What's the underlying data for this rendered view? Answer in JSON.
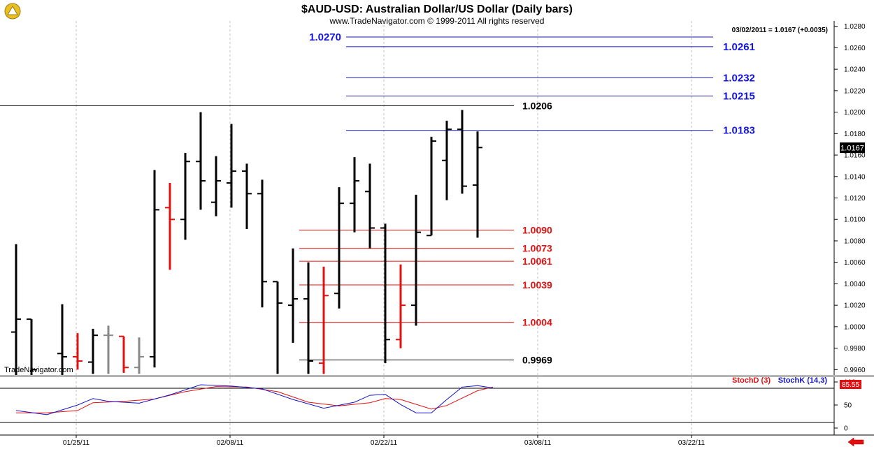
{
  "header": {
    "title": "$AUD-USD:  Australian Dollar/US Dollar  (Daily bars)",
    "subtitle": "www.TradeNavigator.com © 1999-2011 All rights reserved",
    "info": "03/02/2011 = 1.0167 (+0.0035)",
    "watermark": "TradeNavigator.com"
  },
  "colors": {
    "up_bar": "#000000",
    "down_bar": "#e41010",
    "neutral_bar": "#888888",
    "blue_level": "#1a1aa0",
    "blue_label": "#1515e0",
    "red_level": "#e41010",
    "black_level": "#000000",
    "grid": "#c0c0c0",
    "stoch_d": "#e41010",
    "stoch_k": "#1515c8"
  },
  "chart_data": {
    "type": "ohlc",
    "price_axis": {
      "min": 0.9955,
      "max": 1.0285,
      "ticks": [
        "1.0280",
        "1.0260",
        "1.0240",
        "1.0220",
        "1.0200",
        "1.0180",
        "1.0160",
        "1.0140",
        "1.0120",
        "1.0100",
        "1.0080",
        "1.0060",
        "1.0040",
        "1.0020",
        "1.0000",
        "0.9980",
        "0.9960"
      ],
      "last_price": "1.0167"
    },
    "date_axis": {
      "labels": [
        {
          "label": "01/25/11",
          "day": 0
        },
        {
          "label": "02/08/11",
          "day": 10
        },
        {
          "label": "02/22/11",
          "day": 20
        },
        {
          "label": "03/08/11",
          "day": 30
        },
        {
          "label": "03/22/11",
          "day": 40
        }
      ],
      "last_day": 47
    },
    "bars": [
      {
        "day": -4,
        "o": 0.9995,
        "h": 1.0077,
        "l": 0.9955,
        "c": 1.0007,
        "color": "up"
      },
      {
        "day": -3,
        "o": 1.0007,
        "h": 1.0007,
        "l": 0.9955,
        "c": 0.996,
        "color": "up"
      },
      {
        "day": -1,
        "o": 0.9975,
        "h": 1.0021,
        "l": 0.9955,
        "c": 0.9972,
        "color": "up"
      },
      {
        "day": 0,
        "o": 0.9972,
        "h": 0.9994,
        "l": 0.996,
        "c": 0.9968,
        "color": "down"
      },
      {
        "day": 1,
        "o": 0.9967,
        "h": 0.9998,
        "l": 0.9956,
        "c": 0.9992,
        "color": "up"
      },
      {
        "day": 2,
        "o": 0.9992,
        "h": 1.0001,
        "l": 0.9956,
        "c": 0.9992,
        "color": "neutral"
      },
      {
        "day": 3,
        "o": 0.9991,
        "h": 0.9991,
        "l": 0.9957,
        "c": 0.9962,
        "color": "down"
      },
      {
        "day": 4,
        "o": 0.9962,
        "h": 0.999,
        "l": 0.9956,
        "c": 0.9972,
        "color": "neutral"
      },
      {
        "day": 5,
        "o": 0.9972,
        "h": 1.0146,
        "l": 0.9962,
        "c": 1.0109,
        "color": "up"
      },
      {
        "day": 6,
        "o": 1.0111,
        "h": 1.0134,
        "l": 1.0053,
        "c": 1.01,
        "color": "down"
      },
      {
        "day": 7,
        "o": 1.01,
        "h": 1.0162,
        "l": 1.0081,
        "c": 1.0154,
        "color": "up"
      },
      {
        "day": 8,
        "o": 1.0154,
        "h": 1.02,
        "l": 1.0109,
        "c": 1.0136,
        "color": "up"
      },
      {
        "day": 9,
        "o": 1.0116,
        "h": 1.0159,
        "l": 1.0103,
        "c": 1.0136,
        "color": "up"
      },
      {
        "day": 10,
        "o": 1.0134,
        "h": 1.0189,
        "l": 1.0111,
        "c": 1.0145,
        "color": "up"
      },
      {
        "day": 11,
        "o": 1.0145,
        "h": 1.0152,
        "l": 1.0091,
        "c": 1.0124,
        "color": "up"
      },
      {
        "day": 12,
        "o": 1.0124,
        "h": 1.0137,
        "l": 1.0018,
        "c": 1.0042,
        "color": "up"
      },
      {
        "day": 13,
        "o": 1.0042,
        "h": 1.0042,
        "l": 0.9956,
        "c": 1.0022,
        "color": "up"
      },
      {
        "day": 14,
        "o": 1.002,
        "h": 1.0073,
        "l": 0.9985,
        "c": 1.0026,
        "color": "up"
      },
      {
        "day": 15,
        "o": 1.0026,
        "h": 1.006,
        "l": 0.9956,
        "c": 0.9968,
        "color": "up"
      },
      {
        "day": 16,
        "o": 0.9966,
        "h": 1.0056,
        "l": 0.9956,
        "c": 1.0029,
        "color": "down"
      },
      {
        "day": 17,
        "o": 1.0031,
        "h": 1.013,
        "l": 1.0017,
        "c": 1.0115,
        "color": "up"
      },
      {
        "day": 18,
        "o": 1.0115,
        "h": 1.0158,
        "l": 1.0088,
        "c": 1.0136,
        "color": "up"
      },
      {
        "day": 19,
        "o": 1.0126,
        "h": 1.0152,
        "l": 1.0073,
        "c": 1.0092,
        "color": "up"
      },
      {
        "day": 20,
        "o": 1.0092,
        "h": 1.0096,
        "l": 0.9966,
        "c": 0.9988,
        "color": "up"
      },
      {
        "day": 21,
        "o": 0.9988,
        "h": 1.0058,
        "l": 0.998,
        "c": 1.002,
        "color": "down"
      },
      {
        "day": 22,
        "o": 1.002,
        "h": 1.0123,
        "l": 1.0001,
        "c": 1.0088,
        "color": "up"
      },
      {
        "day": 23,
        "o": 1.0085,
        "h": 1.0177,
        "l": 1.0085,
        "c": 1.0173,
        "color": "up"
      },
      {
        "day": 24,
        "o": 1.0155,
        "h": 1.0192,
        "l": 1.0118,
        "c": 1.0184,
        "color": "up"
      },
      {
        "day": 25,
        "o": 1.0184,
        "h": 1.0202,
        "l": 1.0124,
        "c": 1.0131,
        "color": "up"
      },
      {
        "day": 26,
        "o": 1.0132,
        "h": 1.0182,
        "l": 1.0083,
        "c": 1.0167,
        "color": "up"
      }
    ],
    "levels": [
      {
        "price": 1.027,
        "label": "1.0270",
        "color": "blue"
      },
      {
        "price": 1.0261,
        "label": "1.0261",
        "color": "blue"
      },
      {
        "price": 1.0232,
        "label": "1.0232",
        "color": "blue"
      },
      {
        "price": 1.0215,
        "label": "1.0215",
        "color": "blue"
      },
      {
        "price": 1.0206,
        "label": "1.0206",
        "color": "black"
      },
      {
        "price": 1.0183,
        "label": "1.0183",
        "color": "blue"
      },
      {
        "price": 1.009,
        "label": "1.0090",
        "color": "red"
      },
      {
        "price": 1.0073,
        "label": "1.0073",
        "color": "red"
      },
      {
        "price": 1.0061,
        "label": "1.0061",
        "color": "red"
      },
      {
        "price": 1.0039,
        "label": "1.0039",
        "color": "red"
      },
      {
        "price": 1.0004,
        "label": "1.0004",
        "color": "red"
      },
      {
        "price": 0.9969,
        "label": "0.9969",
        "color": "black"
      }
    ],
    "stochastic": {
      "label_d": "StochD (3)",
      "label_k": "StochK (14,3)",
      "value_box": "85.55",
      "ticks": [
        "100",
        "50",
        "0"
      ],
      "stoch_k": [
        {
          "day": -4,
          "v": 38
        },
        {
          "day": -2,
          "v": 29
        },
        {
          "day": 0,
          "v": 50
        },
        {
          "day": 1,
          "v": 64
        },
        {
          "day": 2,
          "v": 58
        },
        {
          "day": 4,
          "v": 54
        },
        {
          "day": 6,
          "v": 72
        },
        {
          "day": 8,
          "v": 94
        },
        {
          "day": 10,
          "v": 91
        },
        {
          "day": 12,
          "v": 85
        },
        {
          "day": 14,
          "v": 62
        },
        {
          "day": 16,
          "v": 43
        },
        {
          "day": 18,
          "v": 56
        },
        {
          "day": 19,
          "v": 71
        },
        {
          "day": 20,
          "v": 73
        },
        {
          "day": 21,
          "v": 51
        },
        {
          "day": 22,
          "v": 33
        },
        {
          "day": 23,
          "v": 33
        },
        {
          "day": 24,
          "v": 62
        },
        {
          "day": 25,
          "v": 89
        },
        {
          "day": 26,
          "v": 92
        },
        {
          "day": 27,
          "v": 87
        }
      ],
      "stoch_d": [
        {
          "day": -4,
          "v": 33
        },
        {
          "day": -2,
          "v": 33
        },
        {
          "day": 0,
          "v": 38
        },
        {
          "day": 1,
          "v": 55
        },
        {
          "day": 3,
          "v": 58
        },
        {
          "day": 5,
          "v": 63
        },
        {
          "day": 7,
          "v": 79
        },
        {
          "day": 9,
          "v": 90
        },
        {
          "day": 11,
          "v": 89
        },
        {
          "day": 13,
          "v": 79
        },
        {
          "day": 15,
          "v": 56
        },
        {
          "day": 17,
          "v": 48
        },
        {
          "day": 19,
          "v": 55
        },
        {
          "day": 20,
          "v": 64
        },
        {
          "day": 21,
          "v": 62
        },
        {
          "day": 23,
          "v": 41
        },
        {
          "day": 24,
          "v": 49
        },
        {
          "day": 26,
          "v": 81
        },
        {
          "day": 27,
          "v": 89
        }
      ]
    }
  }
}
